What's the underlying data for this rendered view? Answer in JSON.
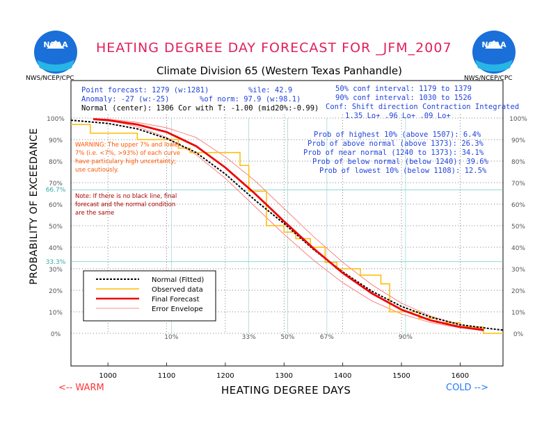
{
  "header": {
    "title": "HEATING DEGREE DAY FORECAST FOR _JFM_2007",
    "subtitle": "Climate Division 65 (Western Texas Panhandle)",
    "org_left": "NWS/NCEP/CPC",
    "org_right": "NWS/NCEP/CPC",
    "logo_text": "NOAA"
  },
  "info": {
    "point_forecast": "Point forecast: 1279 (w:1281)",
    "pctile": "%ile: 42.9",
    "anomaly": "Anomaly: -27 (w:-25)",
    "of_norm": "%of norm: 97.9 (w:98.1)",
    "normal": "Normal (center): 1306 Cor with T: -1.00 (mid20%:-0.99)",
    "conf50": "50% conf interval: 1179 to 1379",
    "conf90": "90% conf interval: 1030 to 1526",
    "conf_header": "Conf: Shift direction   Contraction   Integrated",
    "conf_values": "1.35 Lo+            .96 Lo+     .09 Lo+",
    "prob_highest": "Prob of highest 10% (above 1507): 6.4%",
    "prob_above": "Prob of above normal (above 1373): 26.3%",
    "prob_near": "Prob of near normal (1240 to 1373): 34.1%",
    "prob_below": "Prob of below normal (below 1240): 39.6%",
    "prob_lowest": "Prob of lowest 10% (below 1108): 12.5%"
  },
  "notes": {
    "warning": "WARNING: The upper 7% and lower 7% (i.e. <7%, >93%) of each curve have particulary high uncertainty; use cautiously.",
    "note": "Note: If there is no black line, final forecast and  the normal condition are the same"
  },
  "axis_words": {
    "warm": "<--  WARM",
    "cold": "COLD  -->"
  },
  "chart_data": {
    "type": "line",
    "xlabel": "HEATING DEGREE DAYS",
    "ylabel": "PROBABILITY OF EXCEEDANCE",
    "xlim": [
      937,
      1673
    ],
    "ylim": [
      0,
      100
    ],
    "x_ticks": [
      1000,
      1100,
      1200,
      1300,
      1400,
      1500,
      1600
    ],
    "y_ticks": [
      0,
      10,
      20,
      30,
      40,
      50,
      60,
      70,
      80,
      90,
      100
    ],
    "y_tick_labels": [
      "0%",
      "10%",
      "20%",
      "30%",
      "40%",
      "50%",
      "60%",
      "70%",
      "80%",
      "90%",
      "100%"
    ],
    "special_y_labels": [
      {
        "value": 66.7,
        "label": "66.7%"
      },
      {
        "value": 33.3,
        "label": "33.3%"
      }
    ],
    "percentile_markers": [
      {
        "x": 1108,
        "label": "10%"
      },
      {
        "x": 1240,
        "label": "33%"
      },
      {
        "x": 1306,
        "label": "50%"
      },
      {
        "x": 1373,
        "label": "67%"
      },
      {
        "x": 1507,
        "label": "90%"
      }
    ],
    "grid": true,
    "legend": {
      "position": "bottom-left",
      "entries": [
        "Normal (Fitted)",
        "Observed data",
        "Final Forecast",
        "Error Envelope"
      ]
    },
    "series": [
      {
        "name": "Normal (Fitted)",
        "color": "#000000",
        "style": "dashed",
        "x": [
          937,
          1000,
          1050,
          1100,
          1150,
          1200,
          1250,
          1300,
          1350,
          1400,
          1450,
          1500,
          1550,
          1600,
          1650,
          1673
        ],
        "y": [
          99,
          97.5,
          95,
          90.5,
          84,
          74,
          62,
          51,
          39,
          28.5,
          19.5,
          12.5,
          7.5,
          4,
          2.2,
          1.5
        ]
      },
      {
        "name": "Final Forecast",
        "color": "#ee0000",
        "style": "solid",
        "x": [
          975,
          1000,
          1050,
          1100,
          1150,
          1200,
          1250,
          1300,
          1350,
          1400,
          1450,
          1500,
          1550,
          1600,
          1640
        ],
        "y": [
          99.5,
          99,
          97,
          93.5,
          87,
          77,
          65,
          52,
          39.5,
          28,
          18.5,
          11,
          6,
          3,
          1.5
        ]
      },
      {
        "name": "Observed data",
        "color": "#ffbb00",
        "style": "step",
        "x": [
          937,
          970,
          1050,
          1120,
          1140,
          1210,
          1225,
          1240,
          1270,
          1300,
          1320,
          1345,
          1370,
          1390,
          1430,
          1465,
          1480,
          1530,
          1560,
          1600,
          1640,
          1673
        ],
        "y": [
          97,
          93,
          90,
          86,
          84,
          84,
          78,
          66,
          50,
          47,
          44,
          40,
          33,
          30,
          27,
          23,
          10,
          7,
          5,
          3,
          0,
          0
        ]
      },
      {
        "name": "Error Envelope",
        "color": "#ff6666",
        "style": "thin",
        "x": [
          975,
          1000,
          1050,
          1100,
          1150,
          1200,
          1250,
          1300,
          1350,
          1400,
          1450,
          1500,
          1550,
          1600,
          1640
        ],
        "y": [
          99.5,
          99,
          96,
          91,
          83,
          72,
          59,
          46,
          34,
          23.5,
          15,
          9,
          5,
          2.5,
          1.5
        ]
      },
      {
        "name": "Error Envelope",
        "color": "#ff6666",
        "style": "thin",
        "x": [
          975,
          1000,
          1050,
          1100,
          1150,
          1200,
          1250,
          1300,
          1350,
          1400,
          1450,
          1500,
          1550,
          1600,
          1640
        ],
        "y": [
          99.8,
          99.5,
          98,
          95.5,
          91,
          82,
          71,
          58,
          45,
          33,
          22.5,
          14,
          8,
          4,
          2
        ]
      }
    ]
  }
}
